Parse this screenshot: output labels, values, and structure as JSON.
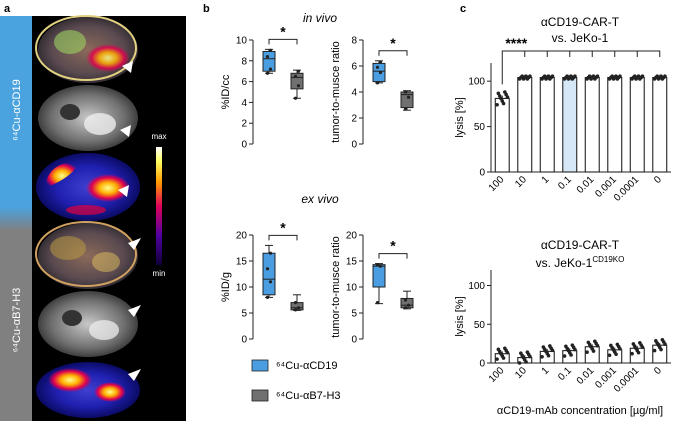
{
  "panel_letters": {
    "a": "a",
    "b": "b",
    "c": "c"
  },
  "panel_a": {
    "label_top": "⁶⁴Cu-αCD19",
    "label_bottom": "⁶⁴Cu-αB7-H3",
    "colorbar_max": "max",
    "colorbar_min": "min",
    "colors": {
      "top_band": "#4aa3df",
      "bottom_band": "#808080"
    }
  },
  "legend": {
    "cd19": "⁶⁴Cu-αCD19",
    "b7h3": "⁶⁴Cu-αB7-H3",
    "colors": {
      "cd19": "#4a9de0",
      "b7h3": "#707070"
    }
  },
  "chart_data": [
    {
      "id": "invivo_idcc",
      "type": "box",
      "title": "in vivo",
      "ylabel": "%ID/cc",
      "ylim": [
        0,
        10
      ],
      "yticks": [
        0,
        2,
        4,
        6,
        8,
        10
      ],
      "significance": "*",
      "groups": [
        {
          "name": "⁶⁴Cu-αCD19",
          "min": 6.8,
          "q1": 7.0,
          "median": 8.2,
          "q3": 8.9,
          "max": 9.1,
          "points": [
            6.8,
            7.2,
            8.4,
            9.0
          ]
        },
        {
          "name": "⁶⁴Cu-αB7-H3",
          "min": 4.4,
          "q1": 5.3,
          "median": 6.4,
          "q3": 6.8,
          "max": 7.1,
          "points": [
            4.4,
            5.6,
            6.5,
            7.0
          ]
        }
      ]
    },
    {
      "id": "invivo_ratio",
      "type": "box",
      "title": "",
      "ylabel": "tumor-to-musce ratio",
      "ylim": [
        0,
        8
      ],
      "yticks": [
        0,
        2,
        4,
        6,
        8
      ],
      "significance": "*",
      "groups": [
        {
          "name": "⁶⁴Cu-αCD19",
          "min": 4.7,
          "q1": 4.8,
          "median": 5.6,
          "q3": 6.2,
          "max": 6.4,
          "points": [
            4.7,
            5.5,
            5.9,
            6.3
          ]
        },
        {
          "name": "⁶⁴Cu-αB7-H3",
          "min": 2.6,
          "q1": 2.8,
          "median": 3.8,
          "q3": 4.0,
          "max": 4.1,
          "points": [
            2.7,
            3.6,
            4.0
          ]
        }
      ]
    },
    {
      "id": "exvivo_idg",
      "type": "box",
      "title": "ex vivo",
      "ylabel": "%ID/g",
      "ylim": [
        0,
        20
      ],
      "yticks": [
        0,
        5,
        10,
        15,
        20
      ],
      "significance": "*",
      "groups": [
        {
          "name": "⁶⁴Cu-αCD19",
          "min": 8.0,
          "q1": 8.5,
          "median": 11.5,
          "q3": 16.5,
          "max": 18.0,
          "points": [
            8.0,
            11.0,
            13.5,
            16.5
          ]
        },
        {
          "name": "⁶⁴Cu-αB7-H3",
          "min": 5.5,
          "q1": 5.6,
          "median": 6.0,
          "q3": 7.0,
          "max": 8.5,
          "points": [
            5.6,
            6.0,
            7.0
          ]
        }
      ]
    },
    {
      "id": "exvivo_ratio",
      "type": "box",
      "title": "",
      "ylabel": "tumor-to-musce ratio",
      "ylim": [
        0,
        20
      ],
      "yticks": [
        0,
        5,
        10,
        15,
        20
      ],
      "significance": "*",
      "groups": [
        {
          "name": "⁶⁴Cu-αCD19",
          "min": 6.8,
          "q1": 10.0,
          "median": 14.0,
          "q3": 14.3,
          "max": 14.5,
          "points": [
            7.0,
            14.0,
            14.3
          ]
        },
        {
          "name": "⁶⁴Cu-αB7-H3",
          "min": 5.8,
          "q1": 6.0,
          "median": 6.5,
          "q3": 7.8,
          "max": 9.2,
          "points": [
            6.0,
            6.5,
            7.5
          ]
        }
      ]
    },
    {
      "id": "lysis_jeko1",
      "type": "bar",
      "title": "αCD19-CAR-T",
      "subtitle": "vs. JeKo-1",
      "ylabel": "lysis [%]",
      "ylim": [
        0,
        120
      ],
      "yticks": [
        0,
        50,
        100
      ],
      "categories": [
        "100",
        "10",
        "1",
        "0.1",
        "0.01",
        "0.001",
        "0.0001",
        "0"
      ],
      "values": [
        81,
        104,
        104,
        104,
        104,
        104,
        104,
        104
      ],
      "highlight_index": 3,
      "highlight_color": "#d6e8f8",
      "significance": "****"
    },
    {
      "id": "lysis_jeko1_ko",
      "type": "bar",
      "title": "αCD19-CAR-T",
      "subtitle": "vs. JeKo-1",
      "subtitle_sup": "CD19KO",
      "ylabel": "lysis [%]",
      "xlabel": "αCD19-mAb concentration [µg/ml]",
      "ylim": [
        0,
        120
      ],
      "yticks": [
        0,
        50,
        100
      ],
      "categories": [
        "100",
        "10",
        "1",
        "0.1",
        "0.01",
        "0.001",
        "0.0001",
        "0"
      ],
      "values": [
        12,
        7,
        15,
        16,
        21,
        17,
        19,
        23
      ]
    }
  ]
}
